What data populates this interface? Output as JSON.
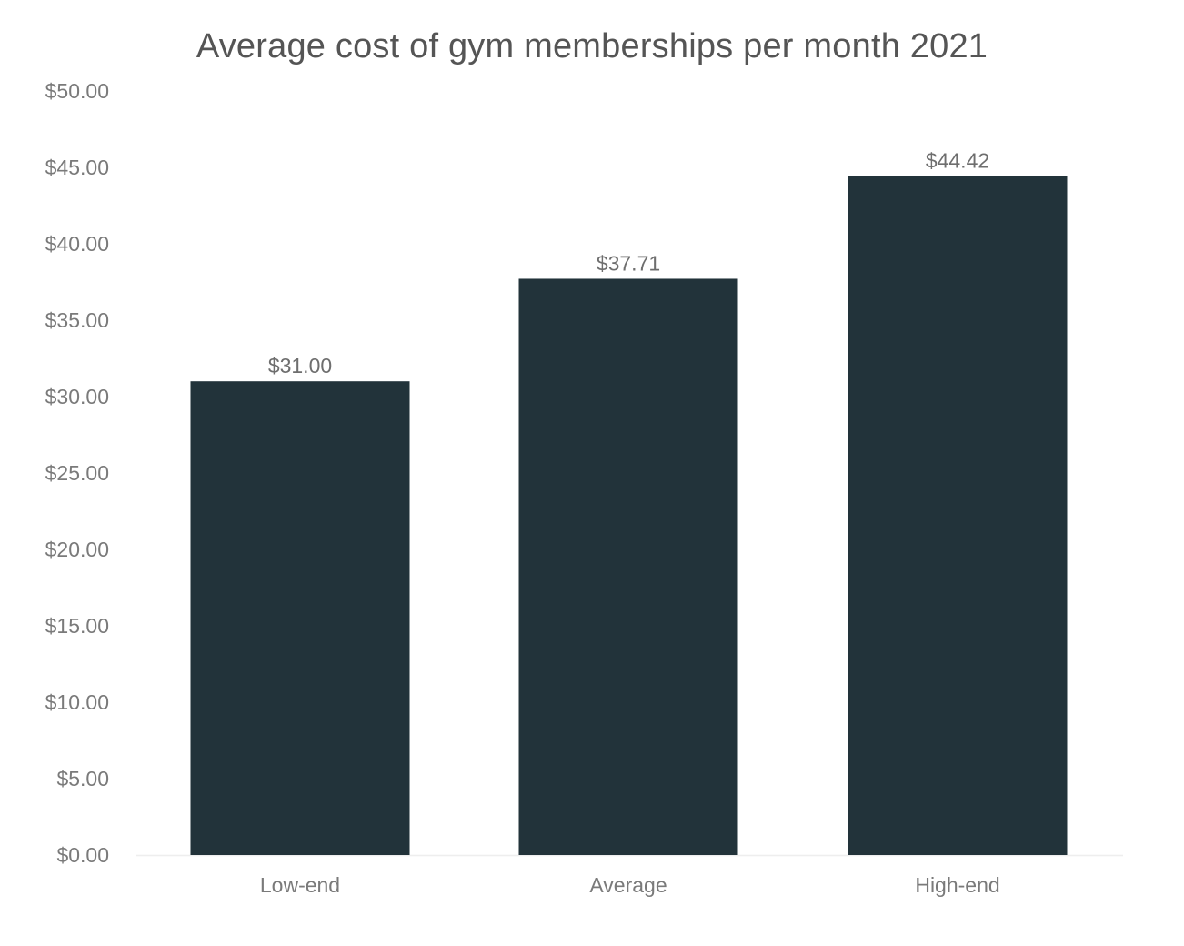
{
  "chart_data": {
    "type": "bar",
    "title": "Average cost of gym memberships per month 2021",
    "categories": [
      "Low-end",
      "Average",
      "High-end"
    ],
    "values": [
      31.0,
      37.71,
      44.42
    ],
    "data_labels": [
      "$31.00",
      "$37.71",
      "$44.42"
    ],
    "y_ticks": [
      0,
      5,
      10,
      15,
      20,
      25,
      30,
      35,
      40,
      45,
      50
    ],
    "y_tick_labels": [
      "$0.00",
      "$5.00",
      "$10.00",
      "$15.00",
      "$20.00",
      "$25.00",
      "$30.00",
      "$35.00",
      "$40.00",
      "$45.00",
      "$50.00"
    ],
    "ylim": [
      0,
      50
    ],
    "xlabel": "",
    "ylabel": "",
    "grid": false,
    "legend": "none",
    "bar_color": "#22333a",
    "text_color": "#7a7a7a",
    "axis_line_color": "#eeeeee"
  }
}
